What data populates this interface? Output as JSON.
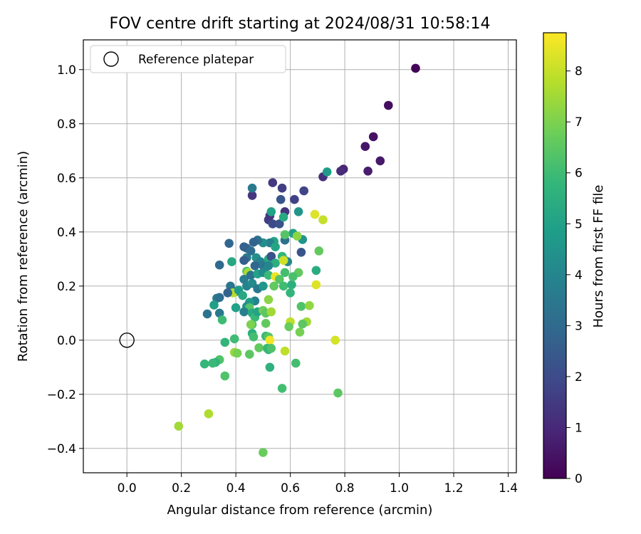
{
  "chart_data": {
    "type": "scatter",
    "title": "FOV centre drift starting at 2024/08/31 10:58:14",
    "xlabel": "Angular distance from reference (arcmin)",
    "ylabel": "Rotation from reference (arcmin)",
    "xlim": [
      -0.16,
      1.43
    ],
    "ylim": [
      -0.49,
      1.11
    ],
    "xticks": [
      0.0,
      0.2,
      0.4,
      0.6,
      0.8,
      1.0,
      1.2,
      1.4
    ],
    "xtick_labels": [
      "0.0",
      "0.2",
      "0.4",
      "0.6",
      "0.8",
      "1.0",
      "1.2",
      "1.4"
    ],
    "yticks": [
      -0.4,
      -0.2,
      0.0,
      0.2,
      0.4,
      0.6,
      0.8,
      1.0
    ],
    "ytick_labels": [
      "−0.4",
      "−0.2",
      "0.0",
      "0.2",
      "0.4",
      "0.6",
      "0.8",
      "1.0"
    ],
    "grid": true,
    "legend": {
      "placement": "top-left",
      "entries": [
        "Reference platepar"
      ]
    },
    "reference_point": {
      "x": 0.0,
      "y": 0.0,
      "label": "Reference platepar"
    },
    "colorbar": {
      "label": "Hours from first FF file",
      "min": 0,
      "max": 8.75,
      "ticks": [
        0,
        1,
        2,
        3,
        4,
        5,
        6,
        7,
        8
      ],
      "tick_labels": [
        "0",
        "1",
        "2",
        "3",
        "4",
        "5",
        "6",
        "7",
        "8"
      ],
      "colormap": "viridis",
      "colormap_stops": [
        "#440154",
        "#482878",
        "#3e4a89",
        "#31688e",
        "#26828e",
        "#1f9e89",
        "#35b779",
        "#6ece58",
        "#b5de2b",
        "#fde725"
      ]
    },
    "points": [
      [
        1.06,
        1.005,
        0.1
      ],
      [
        0.96,
        0.868,
        0.3
      ],
      [
        0.905,
        0.752,
        0.4
      ],
      [
        0.875,
        0.716,
        0.5
      ],
      [
        0.93,
        0.663,
        0.6
      ],
      [
        0.885,
        0.625,
        0.7
      ],
      [
        0.795,
        0.632,
        0.9
      ],
      [
        0.785,
        0.625,
        1.1
      ],
      [
        0.72,
        0.604,
        1.2
      ],
      [
        0.735,
        0.622,
        4.8
      ],
      [
        0.535,
        0.582,
        1.5
      ],
      [
        0.57,
        0.562,
        1.6
      ],
      [
        0.65,
        0.552,
        1.8
      ],
      [
        0.46,
        0.535,
        1.4
      ],
      [
        0.615,
        0.52,
        1.7
      ],
      [
        0.565,
        0.52,
        2.3
      ],
      [
        0.46,
        0.562,
        3.6
      ],
      [
        0.58,
        0.475,
        1.3
      ],
      [
        0.52,
        0.445,
        1.6
      ],
      [
        0.535,
        0.43,
        2.0
      ],
      [
        0.56,
        0.43,
        2.2
      ],
      [
        0.525,
        0.46,
        1.4
      ],
      [
        0.53,
        0.475,
        5.0
      ],
      [
        0.63,
        0.475,
        4.6
      ],
      [
        0.575,
        0.455,
        5.3
      ],
      [
        0.61,
        0.395,
        4.9
      ],
      [
        0.64,
        0.325,
        2.3
      ],
      [
        0.645,
        0.372,
        4.5
      ],
      [
        0.625,
        0.385,
        7.2
      ],
      [
        0.58,
        0.37,
        3.3
      ],
      [
        0.54,
        0.365,
        5.1
      ],
      [
        0.525,
        0.36,
        3.8
      ],
      [
        0.5,
        0.36,
        4.3
      ],
      [
        0.48,
        0.37,
        3.2
      ],
      [
        0.465,
        0.362,
        2.8
      ],
      [
        0.44,
        0.34,
        3.0
      ],
      [
        0.43,
        0.345,
        2.7
      ],
      [
        0.455,
        0.33,
        3.1
      ],
      [
        0.375,
        0.358,
        2.9
      ],
      [
        0.475,
        0.305,
        4.4
      ],
      [
        0.44,
        0.305,
        3.5
      ],
      [
        0.43,
        0.295,
        2.6
      ],
      [
        0.49,
        0.29,
        3.9
      ],
      [
        0.52,
        0.3,
        5.2
      ],
      [
        0.53,
        0.31,
        2.2
      ],
      [
        0.545,
        0.285,
        5.5
      ],
      [
        0.575,
        0.3,
        5.6
      ],
      [
        0.59,
        0.29,
        4.1
      ],
      [
        0.57,
        0.31,
        5.8
      ],
      [
        0.575,
        0.295,
        8.1
      ],
      [
        0.5,
        0.275,
        3.6
      ],
      [
        0.51,
        0.27,
        3.4
      ],
      [
        0.52,
        0.275,
        4.0
      ],
      [
        0.47,
        0.275,
        2.9
      ],
      [
        0.44,
        0.255,
        6.2
      ],
      [
        0.445,
        0.25,
        7.6
      ],
      [
        0.43,
        0.225,
        3.7
      ],
      [
        0.455,
        0.24,
        3.3
      ],
      [
        0.48,
        0.245,
        5.0
      ],
      [
        0.5,
        0.25,
        4.2
      ],
      [
        0.52,
        0.24,
        5.9
      ],
      [
        0.545,
        0.235,
        8.5
      ],
      [
        0.56,
        0.225,
        6.4
      ],
      [
        0.58,
        0.25,
        6.1
      ],
      [
        0.63,
        0.25,
        6.6
      ],
      [
        0.695,
        0.258,
        5.4
      ],
      [
        0.385,
        0.29,
        5.2
      ],
      [
        0.34,
        0.278,
        3.0
      ],
      [
        0.38,
        0.2,
        3.4
      ],
      [
        0.4,
        0.18,
        3.1
      ],
      [
        0.39,
        0.175,
        7.8
      ],
      [
        0.37,
        0.175,
        2.8
      ],
      [
        0.41,
        0.185,
        4.8
      ],
      [
        0.425,
        0.165,
        5.2
      ],
      [
        0.44,
        0.2,
        3.9
      ],
      [
        0.46,
        0.21,
        4.2
      ],
      [
        0.48,
        0.19,
        3.5
      ],
      [
        0.5,
        0.2,
        4.6
      ],
      [
        0.54,
        0.2,
        6.6
      ],
      [
        0.575,
        0.2,
        6.0
      ],
      [
        0.605,
        0.205,
        5.5
      ],
      [
        0.6,
        0.175,
        5.7
      ],
      [
        0.52,
        0.15,
        7.2
      ],
      [
        0.47,
        0.145,
        3.9
      ],
      [
        0.45,
        0.14,
        4.8
      ],
      [
        0.44,
        0.125,
        4.4
      ],
      [
        0.45,
        0.12,
        6.4
      ],
      [
        0.43,
        0.105,
        3.8
      ],
      [
        0.4,
        0.12,
        5.0
      ],
      [
        0.46,
        0.1,
        5.3
      ],
      [
        0.47,
        0.085,
        5.9
      ],
      [
        0.48,
        0.105,
        5.1
      ],
      [
        0.5,
        0.11,
        6.8
      ],
      [
        0.51,
        0.1,
        6.5
      ],
      [
        0.53,
        0.105,
        7.5
      ],
      [
        0.64,
        0.125,
        6.3
      ],
      [
        0.67,
        0.128,
        7.3
      ],
      [
        0.695,
        0.205,
        8.3
      ],
      [
        0.66,
        0.068,
        7.5
      ],
      [
        0.6,
        0.068,
        7.9
      ],
      [
        0.595,
        0.05,
        6.7
      ],
      [
        0.635,
        0.03,
        6.9
      ],
      [
        0.51,
        0.062,
        6.6
      ],
      [
        0.46,
        0.058,
        6.2
      ],
      [
        0.455,
        0.058,
        7.0
      ],
      [
        0.33,
        0.155,
        3.6
      ],
      [
        0.34,
        0.158,
        3.2
      ],
      [
        0.32,
        0.13,
        4.9
      ],
      [
        0.295,
        0.097,
        3.3
      ],
      [
        0.34,
        0.1,
        3.5
      ],
      [
        0.35,
        0.075,
        6.0
      ],
      [
        0.46,
        0.025,
        5.5
      ],
      [
        0.465,
        0.012,
        6.1
      ],
      [
        0.51,
        0.015,
        5.9
      ],
      [
        0.52,
        0.012,
        6.4
      ],
      [
        0.525,
        0.0,
        8.6
      ],
      [
        0.36,
        -0.008,
        5.7
      ],
      [
        0.395,
        0.005,
        6.0
      ],
      [
        0.485,
        -0.028,
        6.6
      ],
      [
        0.515,
        -0.03,
        6.0
      ],
      [
        0.52,
        -0.035,
        5.8
      ],
      [
        0.53,
        -0.03,
        6.3
      ],
      [
        0.58,
        -0.04,
        7.9
      ],
      [
        0.765,
        0.0,
        8.2
      ],
      [
        0.395,
        -0.045,
        7.4
      ],
      [
        0.405,
        -0.048,
        6.9
      ],
      [
        0.45,
        -0.052,
        6.5
      ],
      [
        0.34,
        -0.072,
        6.3
      ],
      [
        0.325,
        -0.082,
        5.6
      ],
      [
        0.315,
        -0.085,
        5.9
      ],
      [
        0.285,
        -0.088,
        5.8
      ],
      [
        0.525,
        -0.1,
        5.6
      ],
      [
        0.62,
        -0.085,
        6.1
      ],
      [
        0.36,
        -0.132,
        6.3
      ],
      [
        0.57,
        -0.178,
        6.1
      ],
      [
        0.775,
        -0.195,
        6.5
      ],
      [
        0.19,
        -0.318,
        7.5
      ],
      [
        0.3,
        -0.272,
        7.7
      ],
      [
        0.5,
        -0.415,
        6.7
      ],
      [
        0.705,
        0.33,
        6.6
      ],
      [
        0.72,
        0.445,
        8.0
      ],
      [
        0.69,
        0.465,
        8.3
      ],
      [
        0.58,
        0.39,
        6.4
      ],
      [
        0.61,
        0.235,
        6.2
      ],
      [
        0.645,
        0.06,
        6.5
      ],
      [
        0.545,
        0.345,
        5.1
      ]
    ]
  }
}
